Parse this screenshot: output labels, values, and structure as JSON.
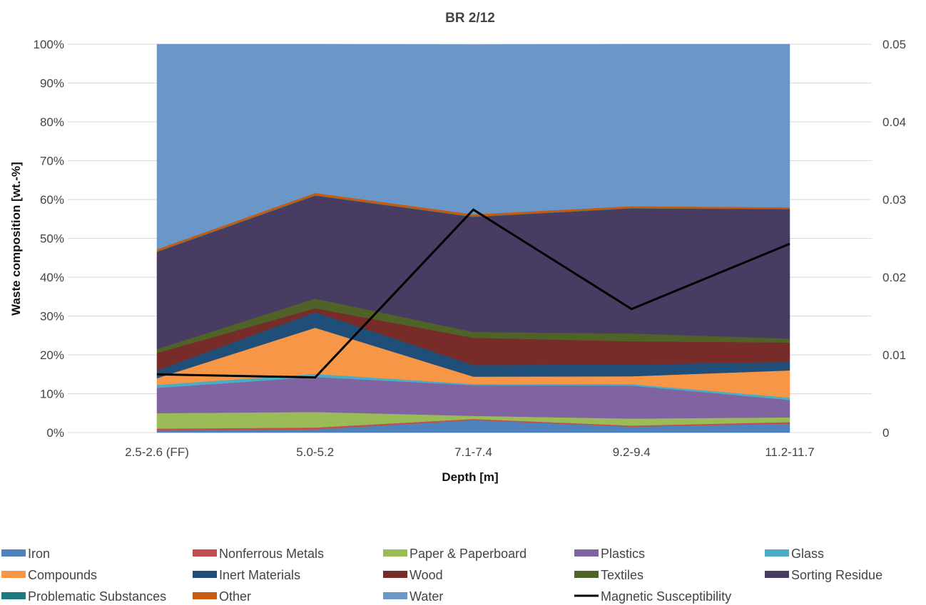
{
  "chart_data": {
    "type": "area",
    "title": "BR 2/12",
    "xlabel": "Depth [m]",
    "ylabel": "Waste composition  [wt.-%]",
    "y2label": "",
    "categories": [
      "2.5-2.6 (FF)",
      "5.0-5.2",
      "7.1-7.4",
      "9.2-9.4",
      "11.2-11.7"
    ],
    "ylim": [
      0,
      100
    ],
    "y_ticks": [
      "0%",
      "10%",
      "20%",
      "30%",
      "40%",
      "50%",
      "60%",
      "70%",
      "80%",
      "90%",
      "100%"
    ],
    "y2lim": [
      0,
      0.05
    ],
    "y2_ticks": [
      "0",
      "0.01",
      "0.02",
      "0.03",
      "0.04",
      "0.05"
    ],
    "stacked": true,
    "grid": true,
    "legend_position": "bottom",
    "series": [
      {
        "name": "Iron",
        "color": "#4f81bd",
        "values": [
          0.5,
          0.8,
          3.2,
          1.5,
          2.3
        ]
      },
      {
        "name": "Nonferrous Metals",
        "color": "#c0504d",
        "values": [
          0.5,
          0.5,
          0.3,
          0.3,
          0.4
        ]
      },
      {
        "name": "Paper & Paperboard",
        "color": "#9bbb59",
        "values": [
          4.0,
          4.0,
          0.8,
          1.8,
          1.2
        ]
      },
      {
        "name": "Plastics",
        "color": "#8064a2",
        "values": [
          6.5,
          9.0,
          7.9,
          8.5,
          4.5
        ]
      },
      {
        "name": "Glass",
        "color": "#4bacc6",
        "values": [
          0.8,
          0.8,
          0.3,
          0.4,
          0.6
        ]
      },
      {
        "name": "Compounds",
        "color": "#f79646",
        "values": [
          1.7,
          11.9,
          1.9,
          2.0,
          7.0
        ]
      },
      {
        "name": "Inert Materials",
        "color": "#1f4e79",
        "values": [
          2.0,
          4.0,
          3.0,
          3.0,
          2.2
        ]
      },
      {
        "name": "Wood",
        "color": "#772c2a",
        "values": [
          4.5,
          1.0,
          7.0,
          6.0,
          5.0
        ]
      },
      {
        "name": "Textiles",
        "color": "#4f6228",
        "values": [
          1.0,
          2.5,
          1.5,
          2.0,
          1.0
        ]
      },
      {
        "name": "Sorting Residue",
        "color": "#483c62",
        "values": [
          25.0,
          26.5,
          29.6,
          32.2,
          33.3
        ]
      },
      {
        "name": "Problematic Substances",
        "color": "#1f7a80",
        "values": [
          0.1,
          0.1,
          0.1,
          0.1,
          0.1
        ]
      },
      {
        "name": "Other",
        "color": "#c55a11",
        "values": [
          0.6,
          0.6,
          0.6,
          0.5,
          0.4
        ]
      },
      {
        "name": "Water",
        "color": "#6a97c8",
        "values": [
          52.8,
          38.3,
          43.7,
          41.7,
          42.0
        ]
      }
    ],
    "line_series": {
      "name": "Magnetic Susceptibility",
      "color": "#000000",
      "axis": "secondary",
      "values": [
        0.0075,
        0.0071,
        0.0287,
        0.0159,
        0.0243
      ]
    }
  }
}
